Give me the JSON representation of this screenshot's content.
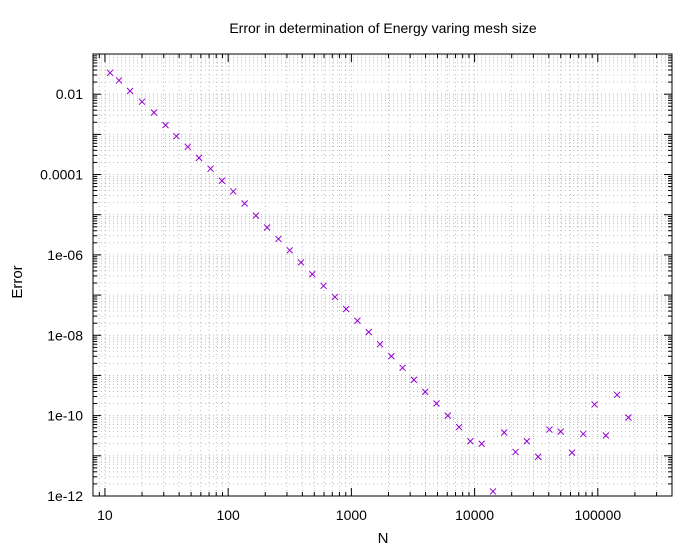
{
  "chart_data": {
    "type": "scatter",
    "title": "Error in determination of Energy varing mesh size",
    "xlabel": "N",
    "ylabel": "Error",
    "x_scale": "log",
    "y_scale": "log",
    "xlim": [
      8,
      400000
    ],
    "ylim": [
      1e-12,
      0.1
    ],
    "grid": true,
    "marker": "x",
    "marker_color": "#9400d3",
    "x_ticks": [
      {
        "value": 10,
        "label": "10"
      },
      {
        "value": 100,
        "label": "100"
      },
      {
        "value": 1000,
        "label": "1000"
      },
      {
        "value": 10000,
        "label": "10000"
      },
      {
        "value": 100000,
        "label": "100000"
      }
    ],
    "y_ticks": [
      {
        "value": 1e-12,
        "label": "1e-12"
      },
      {
        "value": 1e-10,
        "label": "1e-10"
      },
      {
        "value": 1e-08,
        "label": "1e-08"
      },
      {
        "value": 1e-06,
        "label": "1e-06"
      },
      {
        "value": 0.0001,
        "label": "0.0001"
      },
      {
        "value": 0.01,
        "label": "0.01"
      }
    ],
    "series": [
      {
        "points": [
          [
            11,
            0.034
          ],
          [
            13,
            0.022
          ],
          [
            16,
            0.012
          ],
          [
            20,
            0.0065
          ],
          [
            25,
            0.0035
          ],
          [
            31,
            0.0017
          ],
          [
            38,
            0.0009
          ],
          [
            47,
            0.00049
          ],
          [
            58,
            0.00026
          ],
          [
            72,
            0.00014
          ],
          [
            89,
            7e-05
          ],
          [
            110,
            3.8e-05
          ],
          [
            136,
            1.9e-05
          ],
          [
            168,
            9.5e-06
          ],
          [
            207,
            4.8e-06
          ],
          [
            256,
            2.5e-06
          ],
          [
            316,
            1.3e-06
          ],
          [
            390,
            6.5e-07
          ],
          [
            482,
            3.3e-07
          ],
          [
            595,
            1.7e-07
          ],
          [
            735,
            9e-08
          ],
          [
            907,
            4.5e-08
          ],
          [
            1120,
            2.3e-08
          ],
          [
            1383,
            1.2e-08
          ],
          [
            1708,
            6e-09
          ],
          [
            2110,
            3e-09
          ],
          [
            2605,
            1.55e-09
          ],
          [
            3217,
            7.8e-10
          ],
          [
            3973,
            3.9e-10
          ],
          [
            4906,
            2e-10
          ],
          [
            6059,
            1e-10
          ],
          [
            7482,
            5.2e-11
          ],
          [
            9240,
            2.3e-11
          ],
          [
            11410,
            2e-11
          ],
          [
            14090,
            1.3e-12
          ],
          [
            17400,
            3.8e-11
          ],
          [
            21490,
            1.25e-11
          ],
          [
            26540,
            2.3e-11
          ],
          [
            32770,
            9.5e-12
          ],
          [
            40470,
            4.5e-11
          ],
          [
            49980,
            4e-11
          ],
          [
            61720,
            1.2e-11
          ],
          [
            76220,
            3.5e-11
          ],
          [
            94130,
            1.9e-10
          ],
          [
            116200,
            3.2e-11
          ],
          [
            143500,
            3.3e-10
          ],
          [
            177200,
            9e-11
          ]
        ]
      }
    ]
  }
}
